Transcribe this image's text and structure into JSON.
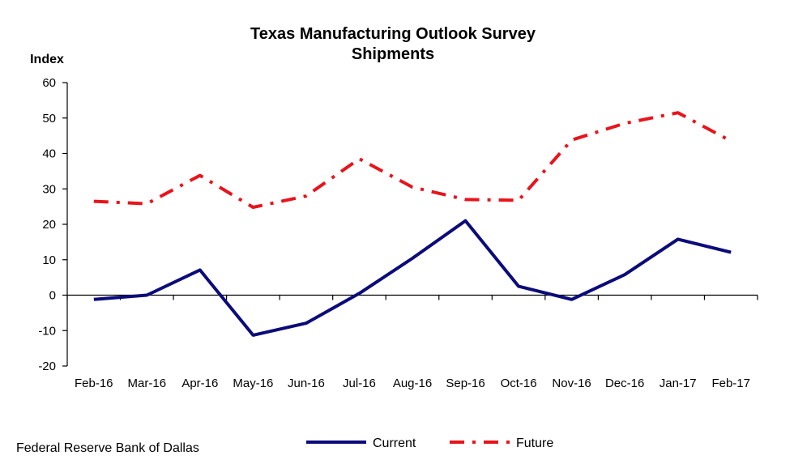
{
  "chart_data": {
    "type": "line",
    "title": "Texas Manufacturing Outlook Survey",
    "subtitle": "Shipments",
    "ylabel": "Index",
    "xlabel": "",
    "ylim": [
      -20,
      60
    ],
    "yticks": [
      60,
      50,
      40,
      30,
      20,
      10,
      0,
      -10,
      -20
    ],
    "grid": false,
    "legend_position": "bottom",
    "categories": [
      "Feb-16",
      "Mar-16",
      "Apr-16",
      "May-16",
      "Jun-16",
      "Jul-16",
      "Aug-16",
      "Sep-16",
      "Oct-16",
      "Nov-16",
      "Dec-16",
      "Jan-17",
      "Feb-17"
    ],
    "series": [
      {
        "name": "Current",
        "color": "#0b0b7a",
        "style": "solid",
        "values": [
          -1.2,
          0,
          7.1,
          -11.3,
          -7.9,
          0.5,
          10.4,
          21.0,
          2.5,
          -1.2,
          5.8,
          15.8,
          12.1
        ]
      },
      {
        "name": "Future",
        "color": "#e8141c",
        "style": "dash-dot",
        "values": [
          26.5,
          25.8,
          33.8,
          24.8,
          28.0,
          38.5,
          30.5,
          27.0,
          26.8,
          43.8,
          48.5,
          51.5,
          43.5
        ]
      }
    ]
  },
  "footer": {
    "source": "Federal Reserve Bank of Dallas"
  }
}
